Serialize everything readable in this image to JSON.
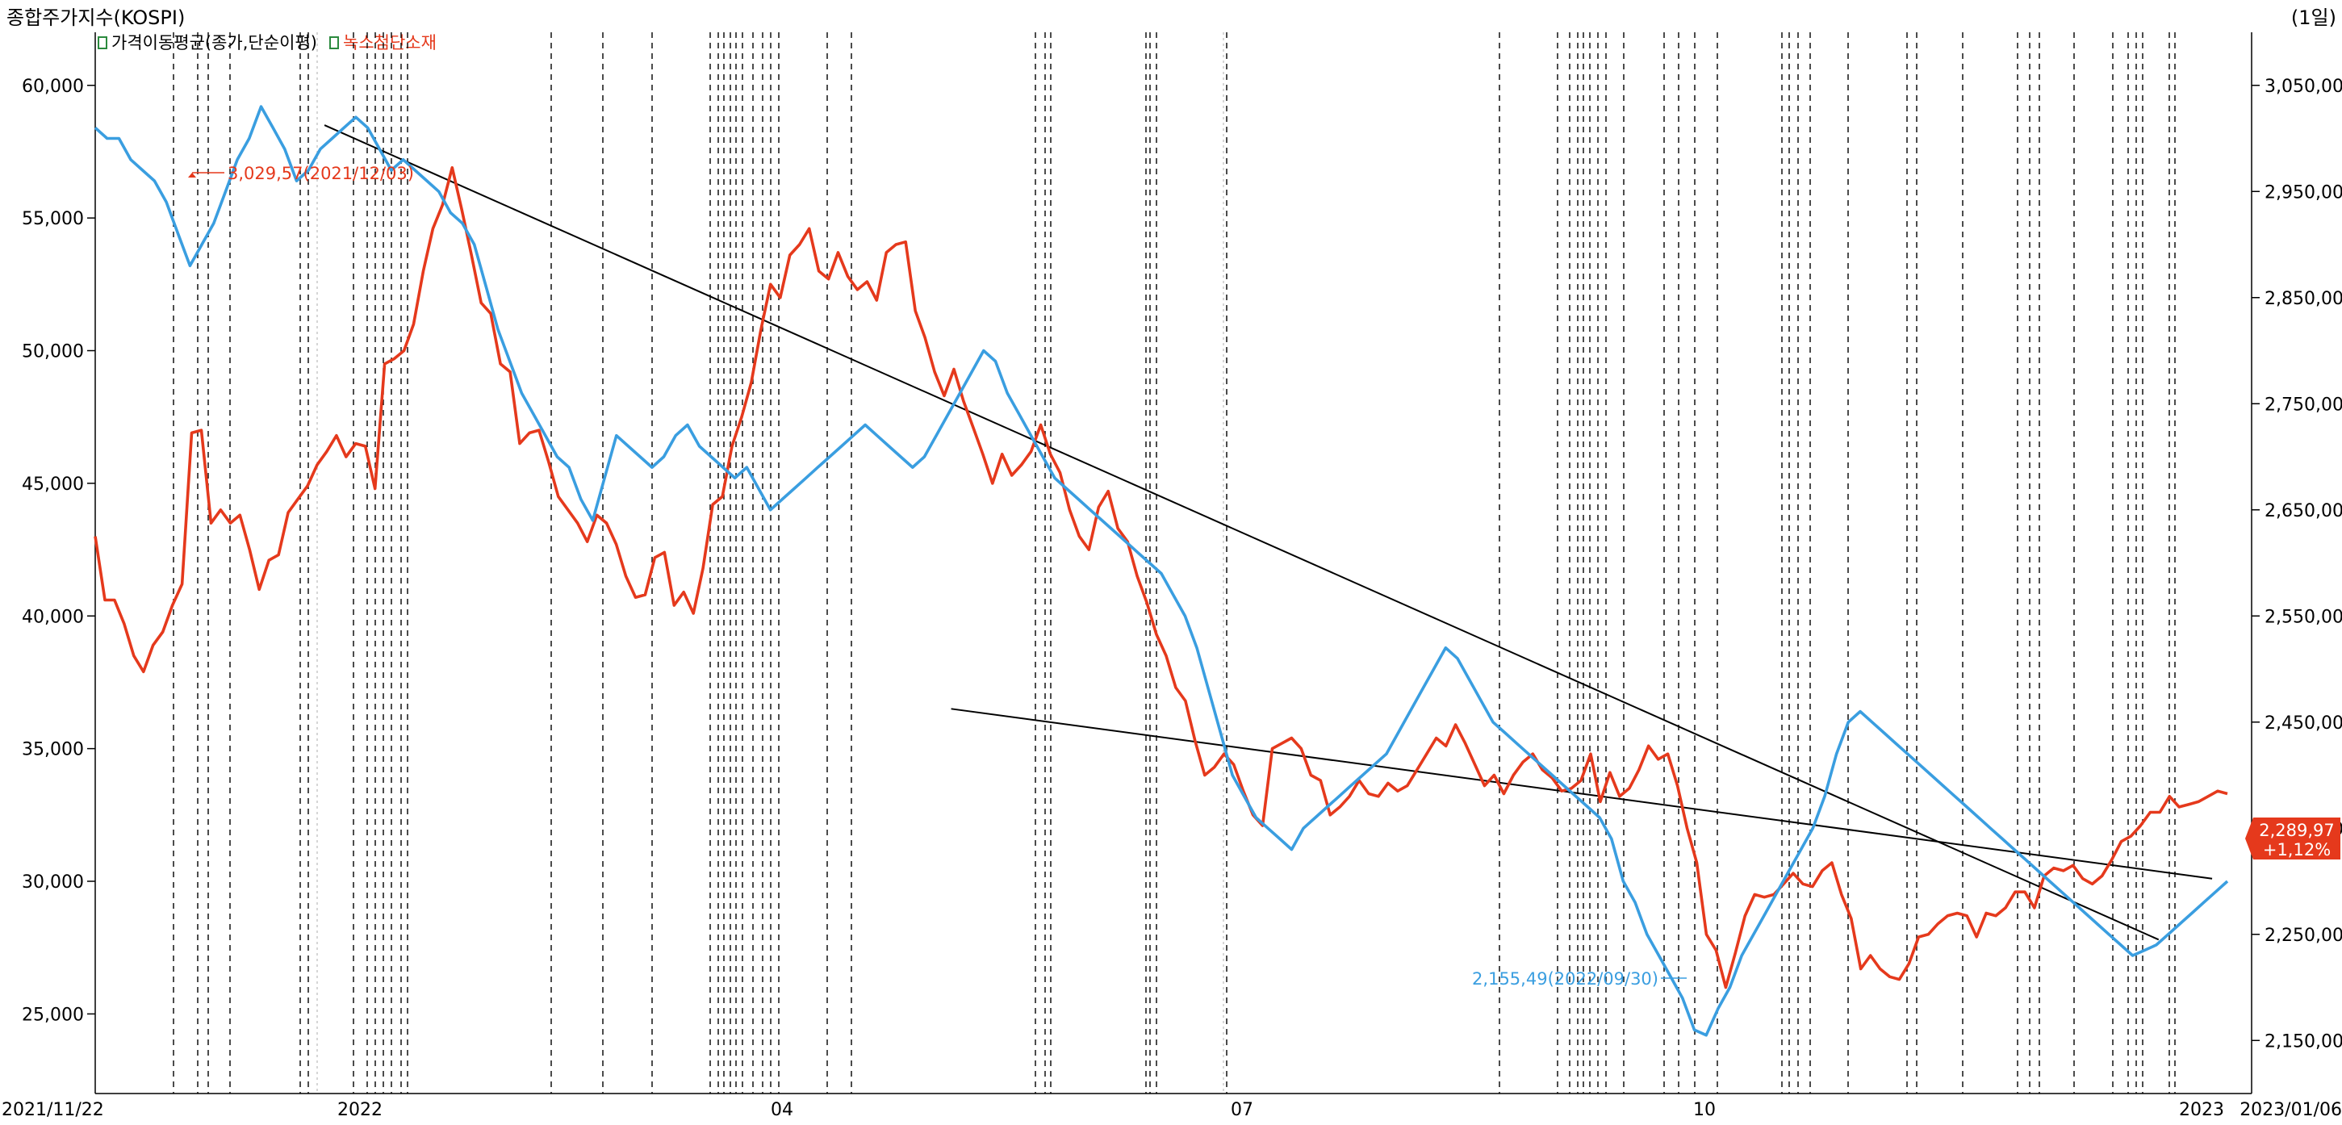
{
  "header": {
    "title": "종합주가지수(KOSPI)",
    "period": "(1일)",
    "legend_items": [
      {
        "label": "가격이동평균(종가,단순이평)",
        "color": "#3a9ee0"
      },
      {
        "label": "녹스첨단소재",
        "color": "#e5391c"
      }
    ]
  },
  "chart_data": {
    "type": "line",
    "x_tick_labels": [
      "2021/11/22",
      "2022",
      "04",
      "07",
      "10",
      "2023",
      "2023/01/06"
    ],
    "ylim_left": [
      22000,
      62000
    ],
    "ylim_right": [
      2100,
      3100
    ],
    "left_axis_ticks": [
      "60,000",
      "55,000",
      "50,000",
      "45,000",
      "40,000",
      "35,000",
      "30,000",
      "25,000"
    ],
    "right_axis_ticks": [
      "3,050,00",
      "2,950,00",
      "2,850,00",
      "2,750,00",
      "2,650,00",
      "2,550,00",
      "2,450,00",
      "2,350,00",
      "2,250,00",
      "2,150,00"
    ],
    "series": [
      {
        "name": "녹스첨단소재",
        "axis": "left",
        "color": "#e5391c",
        "values": [
          43000,
          40600,
          40600,
          39700,
          38500,
          37900,
          38900,
          39400,
          40400,
          41200,
          46900,
          47000,
          43500,
          44000,
          43500,
          43800,
          42500,
          41000,
          42100,
          42300,
          43900,
          44400,
          44900,
          45700,
          46200,
          46800,
          46000,
          46500,
          46400,
          44800,
          49500,
          49700,
          50000,
          51000,
          53000,
          54600,
          55500,
          56900,
          55300,
          53600,
          51800,
          51400,
          49500,
          49200,
          46500,
          46900,
          47000,
          45800,
          44500,
          44000,
          43500,
          42800,
          43800,
          43500,
          42700,
          41500,
          40700,
          40800,
          42200,
          42400,
          40400,
          40900,
          40100,
          41800,
          44200,
          44500,
          46400,
          47500,
          48800,
          50800,
          52500,
          52000,
          53600,
          54000,
          54600,
          53000,
          52700,
          53700,
          52800,
          52300,
          52600,
          51900,
          53700,
          54000,
          54100,
          51500,
          50500,
          49200,
          48300,
          49300,
          48100,
          47100,
          46100,
          45000,
          46100,
          45300,
          45700,
          46200,
          47200,
          46100,
          45400,
          44000,
          43000,
          42500,
          44100,
          44700,
          43300,
          42800,
          41500,
          40500,
          39300,
          38500,
          37300,
          36800,
          35300,
          34000,
          34300,
          34800,
          34400,
          33400,
          32500,
          32100,
          35000,
          35200,
          35400,
          35000,
          34000,
          33800,
          32500,
          32800,
          33200,
          33800,
          33300,
          33200,
          33700,
          33400,
          33600,
          34200,
          34800,
          35400,
          35100,
          35900,
          35200,
          34400,
          33600,
          34000,
          33300,
          34000,
          34500,
          34800,
          34200,
          33900,
          33400,
          33500,
          33800,
          34800,
          33000,
          34100,
          33200,
          33500,
          34200,
          35100,
          34600,
          34800,
          33600,
          32000,
          30700,
          28000,
          27400,
          26000,
          27300,
          28700,
          29500,
          29400,
          29500,
          29900,
          30300,
          29900,
          29800,
          30400,
          30700,
          29500,
          28600,
          26700,
          27200,
          26700,
          26400,
          26300,
          26900,
          27900,
          28000,
          28400,
          28700,
          28800,
          28700,
          27900,
          28800,
          28700,
          29000,
          29600,
          29600,
          29000,
          30200,
          30500,
          30400,
          30600,
          30100,
          29900,
          30200,
          30800,
          31500,
          31700,
          32100,
          32600,
          32600,
          33200,
          32800,
          32900,
          33000,
          33200,
          33400,
          33300
        ],
        "x_start": 0,
        "x_end": 279
      },
      {
        "name": "",
        "axis": "right",
        "color": "#3a9ee0",
        "values": [
          3010,
          3000,
          3000,
          2980,
          2970,
          2960,
          2940,
          2910,
          2880,
          2900,
          2920,
          2950,
          2980,
          3000,
          3030,
          3010,
          2990,
          2960,
          2970,
          2990,
          3000,
          3010,
          3020,
          3010,
          2990,
          2970,
          2980,
          2970,
          2960,
          2950,
          2930,
          2920,
          2900,
          2860,
          2820,
          2790,
          2760,
          2740,
          2720,
          2700,
          2690,
          2660,
          2640,
          2680,
          2720,
          2710,
          2700,
          2690,
          2700,
          2720,
          2730,
          2710,
          2700,
          2690,
          2680,
          2690,
          2670,
          2650,
          2660,
          2670,
          2680,
          2690,
          2700,
          2710,
          2720,
          2730,
          2720,
          2710,
          2700,
          2690,
          2700,
          2720,
          2740,
          2760,
          2780,
          2800,
          2790,
          2760,
          2740,
          2720,
          2700,
          2680,
          2670,
          2660,
          2650,
          2640,
          2630,
          2620,
          2610,
          2600,
          2590,
          2570,
          2550,
          2520,
          2480,
          2440,
          2400,
          2380,
          2360,
          2350,
          2340,
          2330,
          2350,
          2360,
          2370,
          2380,
          2390,
          2400,
          2410,
          2420,
          2440,
          2460,
          2480,
          2500,
          2520,
          2510,
          2490,
          2470,
          2450,
          2440,
          2430,
          2420,
          2410,
          2400,
          2390,
          2380,
          2370,
          2360,
          2340,
          2300,
          2280,
          2250,
          2230,
          2210,
          2190,
          2160,
          2155,
          2180,
          2200,
          2230,
          2250,
          2270,
          2290,
          2310,
          2330,
          2350,
          2380,
          2420,
          2450,
          2460,
          2450,
          2440,
          2430,
          2420,
          2410,
          2400,
          2390,
          2380,
          2370,
          2360,
          2350,
          2340,
          2330,
          2320,
          2310,
          2300,
          2290,
          2280,
          2270,
          2260,
          2250,
          2240,
          2230,
          2235,
          2240,
          2250,
          2260,
          2270,
          2280,
          2290,
          2300
        ],
        "x_start": 0,
        "x_end": 279
      }
    ],
    "price_labels": [
      {
        "text": "3,029,57(2021/12/03)",
        "color": "#e5391c"
      },
      {
        "text": "2,155,49(2022/09/30)",
        "color": "#3a9ee0"
      },
      {
        "text": "2,289,97",
        "color": "#ffffff"
      },
      {
        "text": "+1,12%",
        "color": "#ffffff"
      }
    ],
    "trendlines": [
      {
        "x1": 30,
        "v1": 58500,
        "x2": 270,
        "v2": 27800
      },
      {
        "x1": 112,
        "v1": 36500,
        "x2": 277,
        "v2": 30100
      }
    ]
  },
  "colors": {
    "grid": "#000000",
    "axis": "#000000",
    "badge": "#e5391c"
  }
}
